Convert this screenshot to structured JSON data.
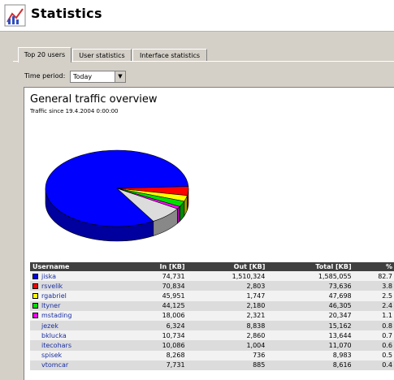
{
  "app": {
    "title": "Statistics",
    "icon": "statistics-chart-icon"
  },
  "tabs": [
    {
      "label": "Top 20 users",
      "active": true
    },
    {
      "label": "User statistics",
      "active": false
    },
    {
      "label": "Interface statistics",
      "active": false
    }
  ],
  "filter": {
    "label": "Time period:",
    "value": "Today"
  },
  "report": {
    "title": "General traffic overview",
    "subtitle": "Traffic since 19.4.2004 0:00:00"
  },
  "table": {
    "headers": {
      "user": "Username",
      "in": "In [KB]",
      "out": "Out [KB]",
      "total": "Total [KB]",
      "pct": "%"
    },
    "rows": [
      {
        "user": "jiska",
        "in": "74,731",
        "out": "1,510,324",
        "total": "1,585,055",
        "pct": "82.7",
        "color": "#0000ff"
      },
      {
        "user": "rsvelik",
        "in": "70,834",
        "out": "2,803",
        "total": "73,636",
        "pct": "3.8",
        "color": "#ff0000"
      },
      {
        "user": "rgabriel",
        "in": "45,951",
        "out": "1,747",
        "total": "47,698",
        "pct": "2.5",
        "color": "#ffff00"
      },
      {
        "user": "ltyner",
        "in": "44,125",
        "out": "2,180",
        "total": "46,305",
        "pct": "2.4",
        "color": "#00dd00"
      },
      {
        "user": "mstading",
        "in": "18,006",
        "out": "2,321",
        "total": "20,347",
        "pct": "1.1",
        "color": "#ff00ff"
      },
      {
        "user": "jezek",
        "in": "6,324",
        "out": "8,838",
        "total": "15,162",
        "pct": "0.8",
        "color": ""
      },
      {
        "user": "bklucka",
        "in": "10,734",
        "out": "2,860",
        "total": "13,644",
        "pct": "0.7",
        "color": ""
      },
      {
        "user": "itecohars",
        "in": "10,086",
        "out": "1,004",
        "total": "11,070",
        "pct": "0.6",
        "color": ""
      },
      {
        "user": "spisek",
        "in": "8,268",
        "out": "736",
        "total": "8,983",
        "pct": "0.5",
        "color": ""
      },
      {
        "user": "vtomcar",
        "in": "7,731",
        "out": "885",
        "total": "8,616",
        "pct": "0.4",
        "color": ""
      }
    ]
  },
  "pie": {
    "slices": [
      {
        "user": "jiska",
        "pct": 82.7,
        "color": "#0000ff"
      },
      {
        "user": "rsvelik",
        "pct": 3.8,
        "color": "#ff0000"
      },
      {
        "user": "rgabriel",
        "pct": 2.5,
        "color": "#ffff00"
      },
      {
        "user": "ltyner",
        "pct": 2.4,
        "color": "#00dd00"
      },
      {
        "user": "mstading",
        "pct": 1.1,
        "color": "#ff00ff"
      },
      {
        "user": "others",
        "pct": 7.5,
        "color": "#dcdcdc"
      }
    ]
  }
}
